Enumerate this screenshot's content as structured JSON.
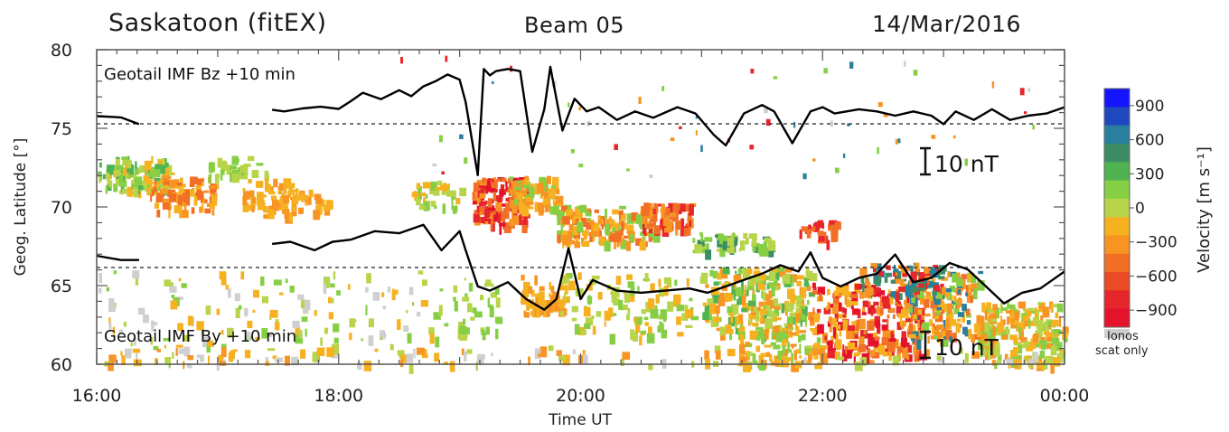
{
  "header": {
    "station": "Saskatoon (fitEX)",
    "beam": "Beam 05",
    "date": "14/Mar/2016"
  },
  "chart_data": {
    "type": "heatmap",
    "xlabel": "Time UT",
    "ylabel": "Geog. Latitude [°]",
    "x_ticks": [
      "16:00",
      "18:00",
      "20:00",
      "22:00",
      "00:00"
    ],
    "x_range_hours": [
      16,
      24
    ],
    "y_ticks": [
      "60",
      "65",
      "70",
      "75",
      "80"
    ],
    "ylim": [
      60,
      80
    ],
    "colorbar": {
      "label": "Velocity [m s⁻¹]",
      "ticks": [
        "900",
        "600",
        "300",
        "0",
        "−300",
        "−600",
        "−900"
      ],
      "range": [
        -1050,
        1050
      ],
      "colors": [
        "#1414ff",
        "#1f47c0",
        "#2a7f9e",
        "#3c8c66",
        "#4fb351",
        "#86cf45",
        "#b7d44a",
        "#f6b120",
        "#f79424",
        "#f26f26",
        "#ea4a24",
        "#e5262a",
        "#e4122b"
      ],
      "ionos_label_1": "Ionos",
      "ionos_label_2": "scat only",
      "ionos_color": "#cfcfcf"
    },
    "annotations": {
      "bz_label": "Geotail  IMF Bz  +10 min",
      "by_label": "Geotail  IMF By  +10 min",
      "bz_scale": "10 nT",
      "by_scale": "10 nT"
    },
    "overlay_series": [
      {
        "name": "Geotail IMF Bz +10 min",
        "zero_latitude": 75.4,
        "degrees_per_10nT": 2.7,
        "x_hours": [
          16.0,
          16.2,
          16.35,
          17.45,
          17.55,
          17.7,
          17.85,
          18.0,
          18.1,
          18.2,
          18.35,
          18.5,
          18.6,
          18.7,
          18.8,
          18.9,
          19.0,
          19.05,
          19.15,
          19.2,
          19.25,
          19.3,
          19.4,
          19.5,
          19.6,
          19.7,
          19.75,
          19.85,
          19.95,
          20.05,
          20.15,
          20.3,
          20.45,
          20.6,
          20.8,
          20.95,
          21.1,
          21.2,
          21.35,
          21.5,
          21.6,
          21.75,
          21.9,
          22.0,
          22.1,
          22.3,
          22.45,
          22.6,
          22.75,
          22.9,
          23.0,
          23.1,
          23.25,
          23.4,
          23.55,
          23.7,
          23.85,
          24.0
        ],
        "values_nT": [
          1.4,
          1.1,
          -0.5,
          2.9,
          2.5,
          3.2,
          3.6,
          3.1,
          4.9,
          6.9,
          5.4,
          7.5,
          6.1,
          8.4,
          9.6,
          11.2,
          10.0,
          4.7,
          -12.5,
          12.5,
          11.0,
          12.0,
          12.5,
          12.0,
          -7.0,
          3.0,
          13.0,
          -2.0,
          5.5,
          2.5,
          3.5,
          0.5,
          2.5,
          1.0,
          3.5,
          2.0,
          -3.0,
          -5.5,
          2.0,
          4.0,
          2.5,
          -5.0,
          2.5,
          3.5,
          2.0,
          3.0,
          2.5,
          1.5,
          2.5,
          1.5,
          -0.5,
          2.5,
          0.5,
          3.0,
          0.5,
          1.5,
          2.0,
          3.5
        ]
      },
      {
        "name": "Geotail IMF By +10 min",
        "zero_latitude": 66.3,
        "degrees_per_10nT": 2.7,
        "x_hours": [
          16.0,
          16.2,
          16.35,
          17.45,
          17.6,
          17.8,
          17.95,
          18.1,
          18.3,
          18.5,
          18.7,
          18.85,
          19.0,
          19.05,
          19.15,
          19.25,
          19.4,
          19.55,
          19.7,
          19.8,
          19.9,
          20.0,
          20.1,
          20.3,
          20.5,
          20.7,
          20.9,
          21.05,
          21.2,
          21.35,
          21.5,
          21.65,
          21.8,
          21.9,
          22.0,
          22.15,
          22.3,
          22.45,
          22.6,
          22.75,
          22.9,
          23.05,
          23.2,
          23.35,
          23.5,
          23.65,
          23.8,
          23.9,
          24.0
        ],
        "values_nT": [
          2.2,
          1.2,
          1.2,
          5.0,
          5.5,
          3.5,
          5.5,
          6.0,
          8.0,
          7.5,
          9.5,
          3.5,
          8.0,
          3.5,
          -5.0,
          -6.0,
          -4.0,
          -8.0,
          -10.5,
          -8.0,
          4.0,
          -8.0,
          -3.5,
          -6.0,
          -6.5,
          -6.0,
          -5.5,
          -6.5,
          -5.0,
          -3.5,
          -2.0,
          0.0,
          -1.5,
          3.0,
          -3.0,
          -5.0,
          -3.0,
          -2.0,
          2.5,
          -4.0,
          -3.0,
          0.5,
          -1.0,
          -5.0,
          -9.0,
          -6.5,
          -5.5,
          -3.5,
          -1.5
        ]
      }
    ],
    "grid": false,
    "legend": "colorbar-right"
  }
}
